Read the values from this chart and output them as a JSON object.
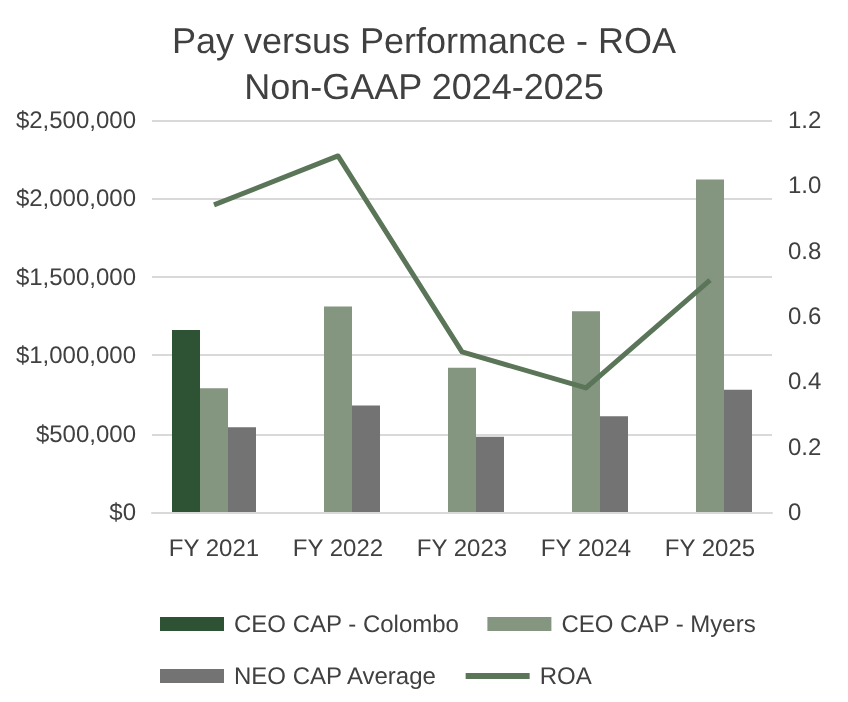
{
  "chart_data": {
    "type": "bar",
    "title": "Pay versus Performance - ROA\nNon-GAAP 2024-2025",
    "categories": [
      "FY 2021",
      "FY 2022",
      "FY 2023",
      "FY 2024",
      "FY 2025"
    ],
    "series": [
      {
        "name": "CEO CAP - Colombo",
        "color": "#2d5234",
        "values": [
          1160000,
          null,
          null,
          null,
          null
        ]
      },
      {
        "name": "CEO CAP - Myers",
        "color": "#849580",
        "values": [
          790000,
          1310000,
          920000,
          1280000,
          2120000
        ]
      },
      {
        "name": "NEO CAP Average",
        "color": "#737373",
        "values": [
          540000,
          680000,
          480000,
          610000,
          780000
        ]
      },
      {
        "name": "ROA",
        "type": "line",
        "axis": "y2",
        "color": "#5a7558",
        "values": [
          0.94,
          1.09,
          0.49,
          0.38,
          0.71
        ]
      }
    ],
    "ylim": [
      0,
      2500000
    ],
    "yticks": [
      {
        "value": 0,
        "label": "$0"
      },
      {
        "value": 500000,
        "label": "$500,000"
      },
      {
        "value": 1000000,
        "label": "$1,000,000"
      },
      {
        "value": 1500000,
        "label": "$1,500,000"
      },
      {
        "value": 2000000,
        "label": "$2,000,000"
      },
      {
        "value": 2500000,
        "label": "$2,500,000"
      }
    ],
    "y2lim": [
      0,
      1.2
    ],
    "y2ticks": [
      0,
      0.2,
      0.4,
      0.6,
      0.8,
      {
        "value": 1,
        "label": "1.0"
      },
      1.2
    ],
    "grid": "y",
    "legend": "bottom",
    "marker": "none",
    "line_style": "solid"
  }
}
